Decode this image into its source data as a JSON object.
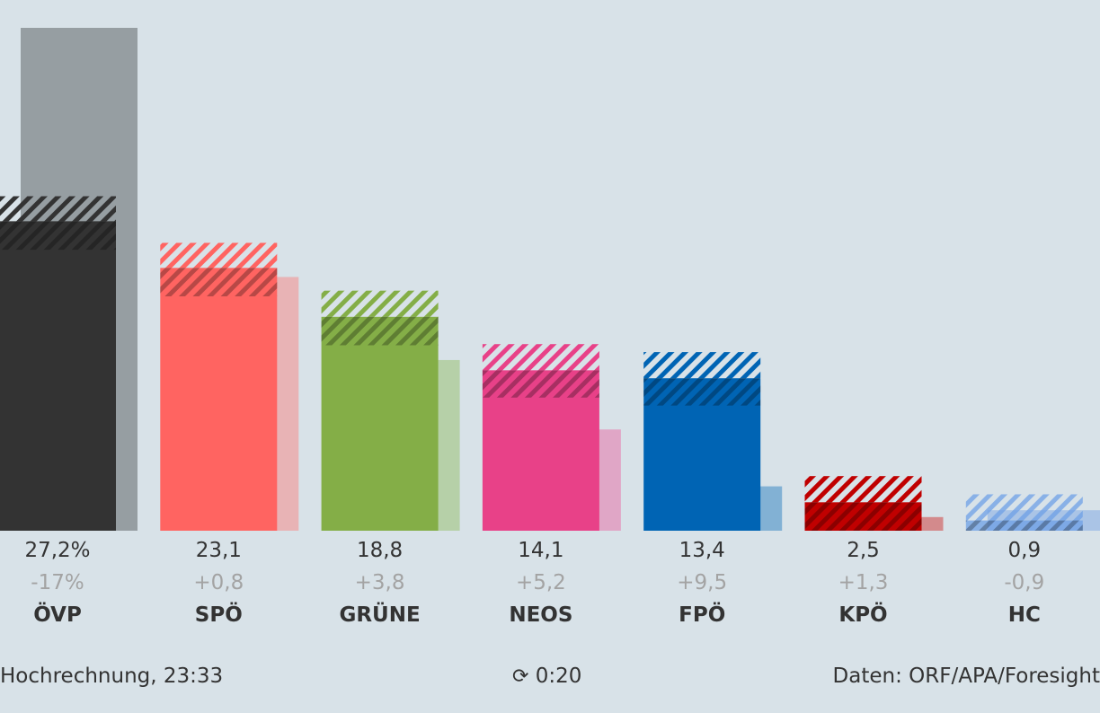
{
  "chart_data": {
    "type": "bar",
    "categories": [
      "ÖVP",
      "SPÖ",
      "GRÜNE",
      "NEOS",
      "FPÖ",
      "KPÖ",
      "HC"
    ],
    "value_labels": [
      "27,2%",
      "23,1",
      "18,8",
      "14,1",
      "13,4",
      "2,5",
      "0,9"
    ],
    "change_labels": [
      "-17%",
      "+0,8",
      "+3,8",
      "+5,2",
      "+9,5",
      "+1,3",
      "-0,9"
    ],
    "values": [
      27.2,
      23.1,
      18.8,
      14.1,
      13.4,
      2.5,
      0.9
    ],
    "previous_values": [
      44.2,
      22.3,
      15.0,
      8.9,
      3.9,
      1.2,
      1.8
    ],
    "uncertainty_range": [
      [
        24.7,
        29.4
      ],
      [
        20.6,
        25.3
      ],
      [
        16.3,
        21.1
      ],
      [
        11.7,
        16.4
      ],
      [
        11.0,
        15.7
      ],
      [
        0,
        4.8
      ],
      [
        0,
        3.2
      ]
    ],
    "colors": [
      "#333333",
      "#ff6461",
      "#84ae47",
      "#e84188",
      "#0064b4",
      "#c00000",
      "#6ea0e6"
    ],
    "previous_colors": [
      "#969ea2",
      "#e8b3b5",
      "#b6d0a8",
      "#e0a6c6",
      "#82b1d4",
      "#d38a8c",
      "#aac4e6"
    ],
    "ylim": [
      0,
      44.2
    ],
    "grid": false
  },
  "footer": {
    "left": "Hochrechnung, 23:33",
    "timer": "0:20",
    "timer_icon": "refresh-icon",
    "right": "Daten: ORF/APA/Foresight"
  }
}
